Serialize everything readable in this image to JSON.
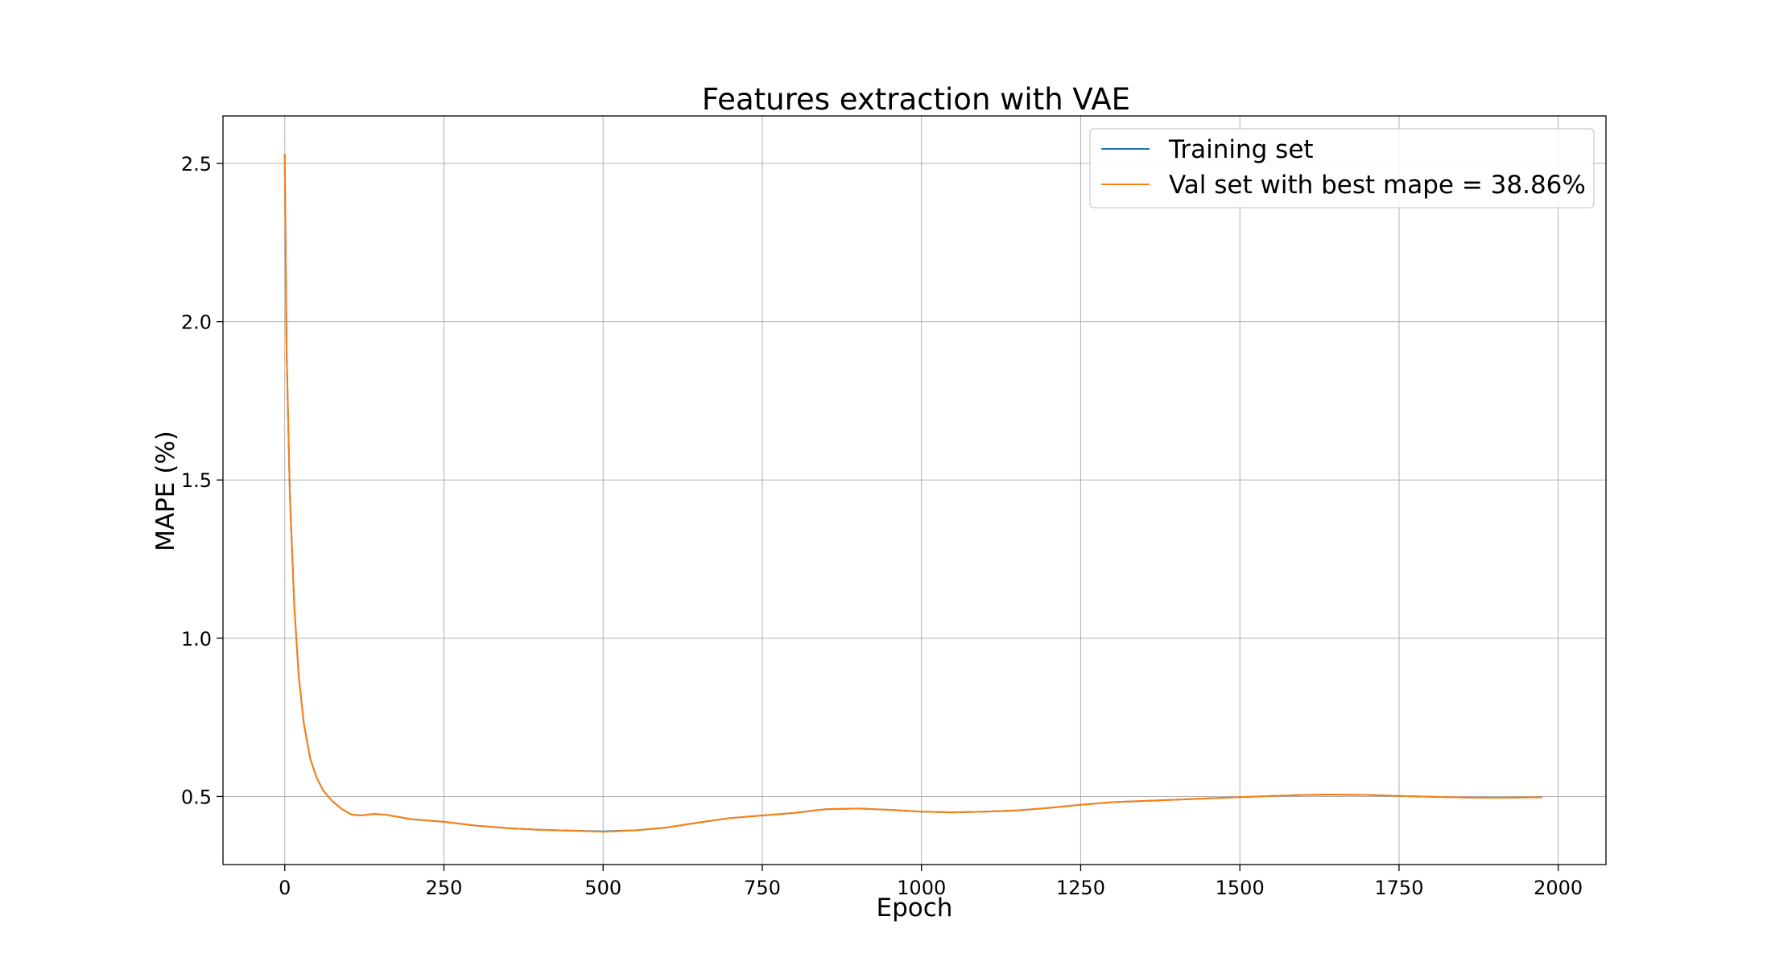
{
  "chart_data": {
    "type": "line",
    "title": "Features extraction with VAE",
    "xlabel": "Epoch",
    "ylabel": "MAPE (%)",
    "xlim": [
      -97,
      2075
    ],
    "ylim": [
      0.285,
      2.65
    ],
    "xticks": [
      0,
      250,
      500,
      750,
      1000,
      1250,
      1500,
      1750,
      2000
    ],
    "xtick_labels": [
      "0",
      "250",
      "500",
      "750",
      "1000",
      "1250",
      "1500",
      "1750",
      "2000"
    ],
    "yticks": [
      0.5,
      1.0,
      1.5,
      2.0,
      2.5
    ],
    "ytick_labels": [
      "0.5",
      "1.0",
      "1.5",
      "2.0",
      "2.5"
    ],
    "grid": true,
    "legend_position": "top-right",
    "series": [
      {
        "name": "Training set",
        "color": "#1f77b4",
        "points": [
          [
            0,
            2.53
          ],
          [
            3,
            1.9
          ],
          [
            8,
            1.45
          ],
          [
            15,
            1.1
          ],
          [
            22,
            0.88
          ],
          [
            30,
            0.73
          ],
          [
            40,
            0.62
          ],
          [
            50,
            0.56
          ],
          [
            60,
            0.52
          ],
          [
            75,
            0.485
          ],
          [
            90,
            0.46
          ],
          [
            105,
            0.443
          ],
          [
            120,
            0.44
          ],
          [
            140,
            0.445
          ],
          [
            160,
            0.442
          ],
          [
            180,
            0.435
          ],
          [
            200,
            0.428
          ],
          [
            250,
            0.42
          ],
          [
            300,
            0.408
          ],
          [
            350,
            0.4
          ],
          [
            400,
            0.395
          ],
          [
            450,
            0.392
          ],
          [
            500,
            0.39
          ],
          [
            550,
            0.393
          ],
          [
            600,
            0.402
          ],
          [
            650,
            0.418
          ],
          [
            700,
            0.432
          ],
          [
            750,
            0.44
          ],
          [
            800,
            0.448
          ],
          [
            850,
            0.46
          ],
          [
            900,
            0.462
          ],
          [
            950,
            0.458
          ],
          [
            1000,
            0.452
          ],
          [
            1050,
            0.45
          ],
          [
            1100,
            0.452
          ],
          [
            1150,
            0.456
          ],
          [
            1200,
            0.464
          ],
          [
            1250,
            0.474
          ],
          [
            1300,
            0.482
          ],
          [
            1350,
            0.486
          ],
          [
            1400,
            0.49
          ],
          [
            1450,
            0.494
          ],
          [
            1500,
            0.498
          ],
          [
            1550,
            0.502
          ],
          [
            1600,
            0.505
          ],
          [
            1650,
            0.506
          ],
          [
            1700,
            0.505
          ],
          [
            1750,
            0.502
          ],
          [
            1800,
            0.499
          ],
          [
            1850,
            0.497
          ],
          [
            1900,
            0.496
          ],
          [
            1950,
            0.497
          ],
          [
            1975,
            0.498
          ]
        ]
      },
      {
        "name": "Val set with best mape = 38.86%",
        "color": "#ff7f0e",
        "points": [
          [
            0,
            2.53
          ],
          [
            3,
            1.9
          ],
          [
            8,
            1.45
          ],
          [
            15,
            1.1
          ],
          [
            22,
            0.88
          ],
          [
            30,
            0.73
          ],
          [
            40,
            0.62
          ],
          [
            50,
            0.56
          ],
          [
            60,
            0.52
          ],
          [
            75,
            0.485
          ],
          [
            90,
            0.46
          ],
          [
            105,
            0.443
          ],
          [
            120,
            0.44
          ],
          [
            140,
            0.445
          ],
          [
            160,
            0.442
          ],
          [
            180,
            0.435
          ],
          [
            200,
            0.428
          ],
          [
            250,
            0.42
          ],
          [
            300,
            0.408
          ],
          [
            350,
            0.4
          ],
          [
            400,
            0.395
          ],
          [
            450,
            0.392
          ],
          [
            500,
            0.3886
          ],
          [
            550,
            0.393
          ],
          [
            600,
            0.402
          ],
          [
            650,
            0.418
          ],
          [
            700,
            0.432
          ],
          [
            750,
            0.44
          ],
          [
            800,
            0.448
          ],
          [
            850,
            0.46
          ],
          [
            900,
            0.462
          ],
          [
            950,
            0.458
          ],
          [
            1000,
            0.452
          ],
          [
            1050,
            0.45
          ],
          [
            1100,
            0.452
          ],
          [
            1150,
            0.456
          ],
          [
            1200,
            0.464
          ],
          [
            1250,
            0.474
          ],
          [
            1300,
            0.482
          ],
          [
            1350,
            0.486
          ],
          [
            1400,
            0.49
          ],
          [
            1450,
            0.494
          ],
          [
            1500,
            0.498
          ],
          [
            1550,
            0.502
          ],
          [
            1600,
            0.505
          ],
          [
            1650,
            0.506
          ],
          [
            1700,
            0.505
          ],
          [
            1750,
            0.502
          ],
          [
            1800,
            0.499
          ],
          [
            1850,
            0.497
          ],
          [
            1900,
            0.496
          ],
          [
            1950,
            0.497
          ],
          [
            1975,
            0.498
          ]
        ]
      }
    ]
  }
}
